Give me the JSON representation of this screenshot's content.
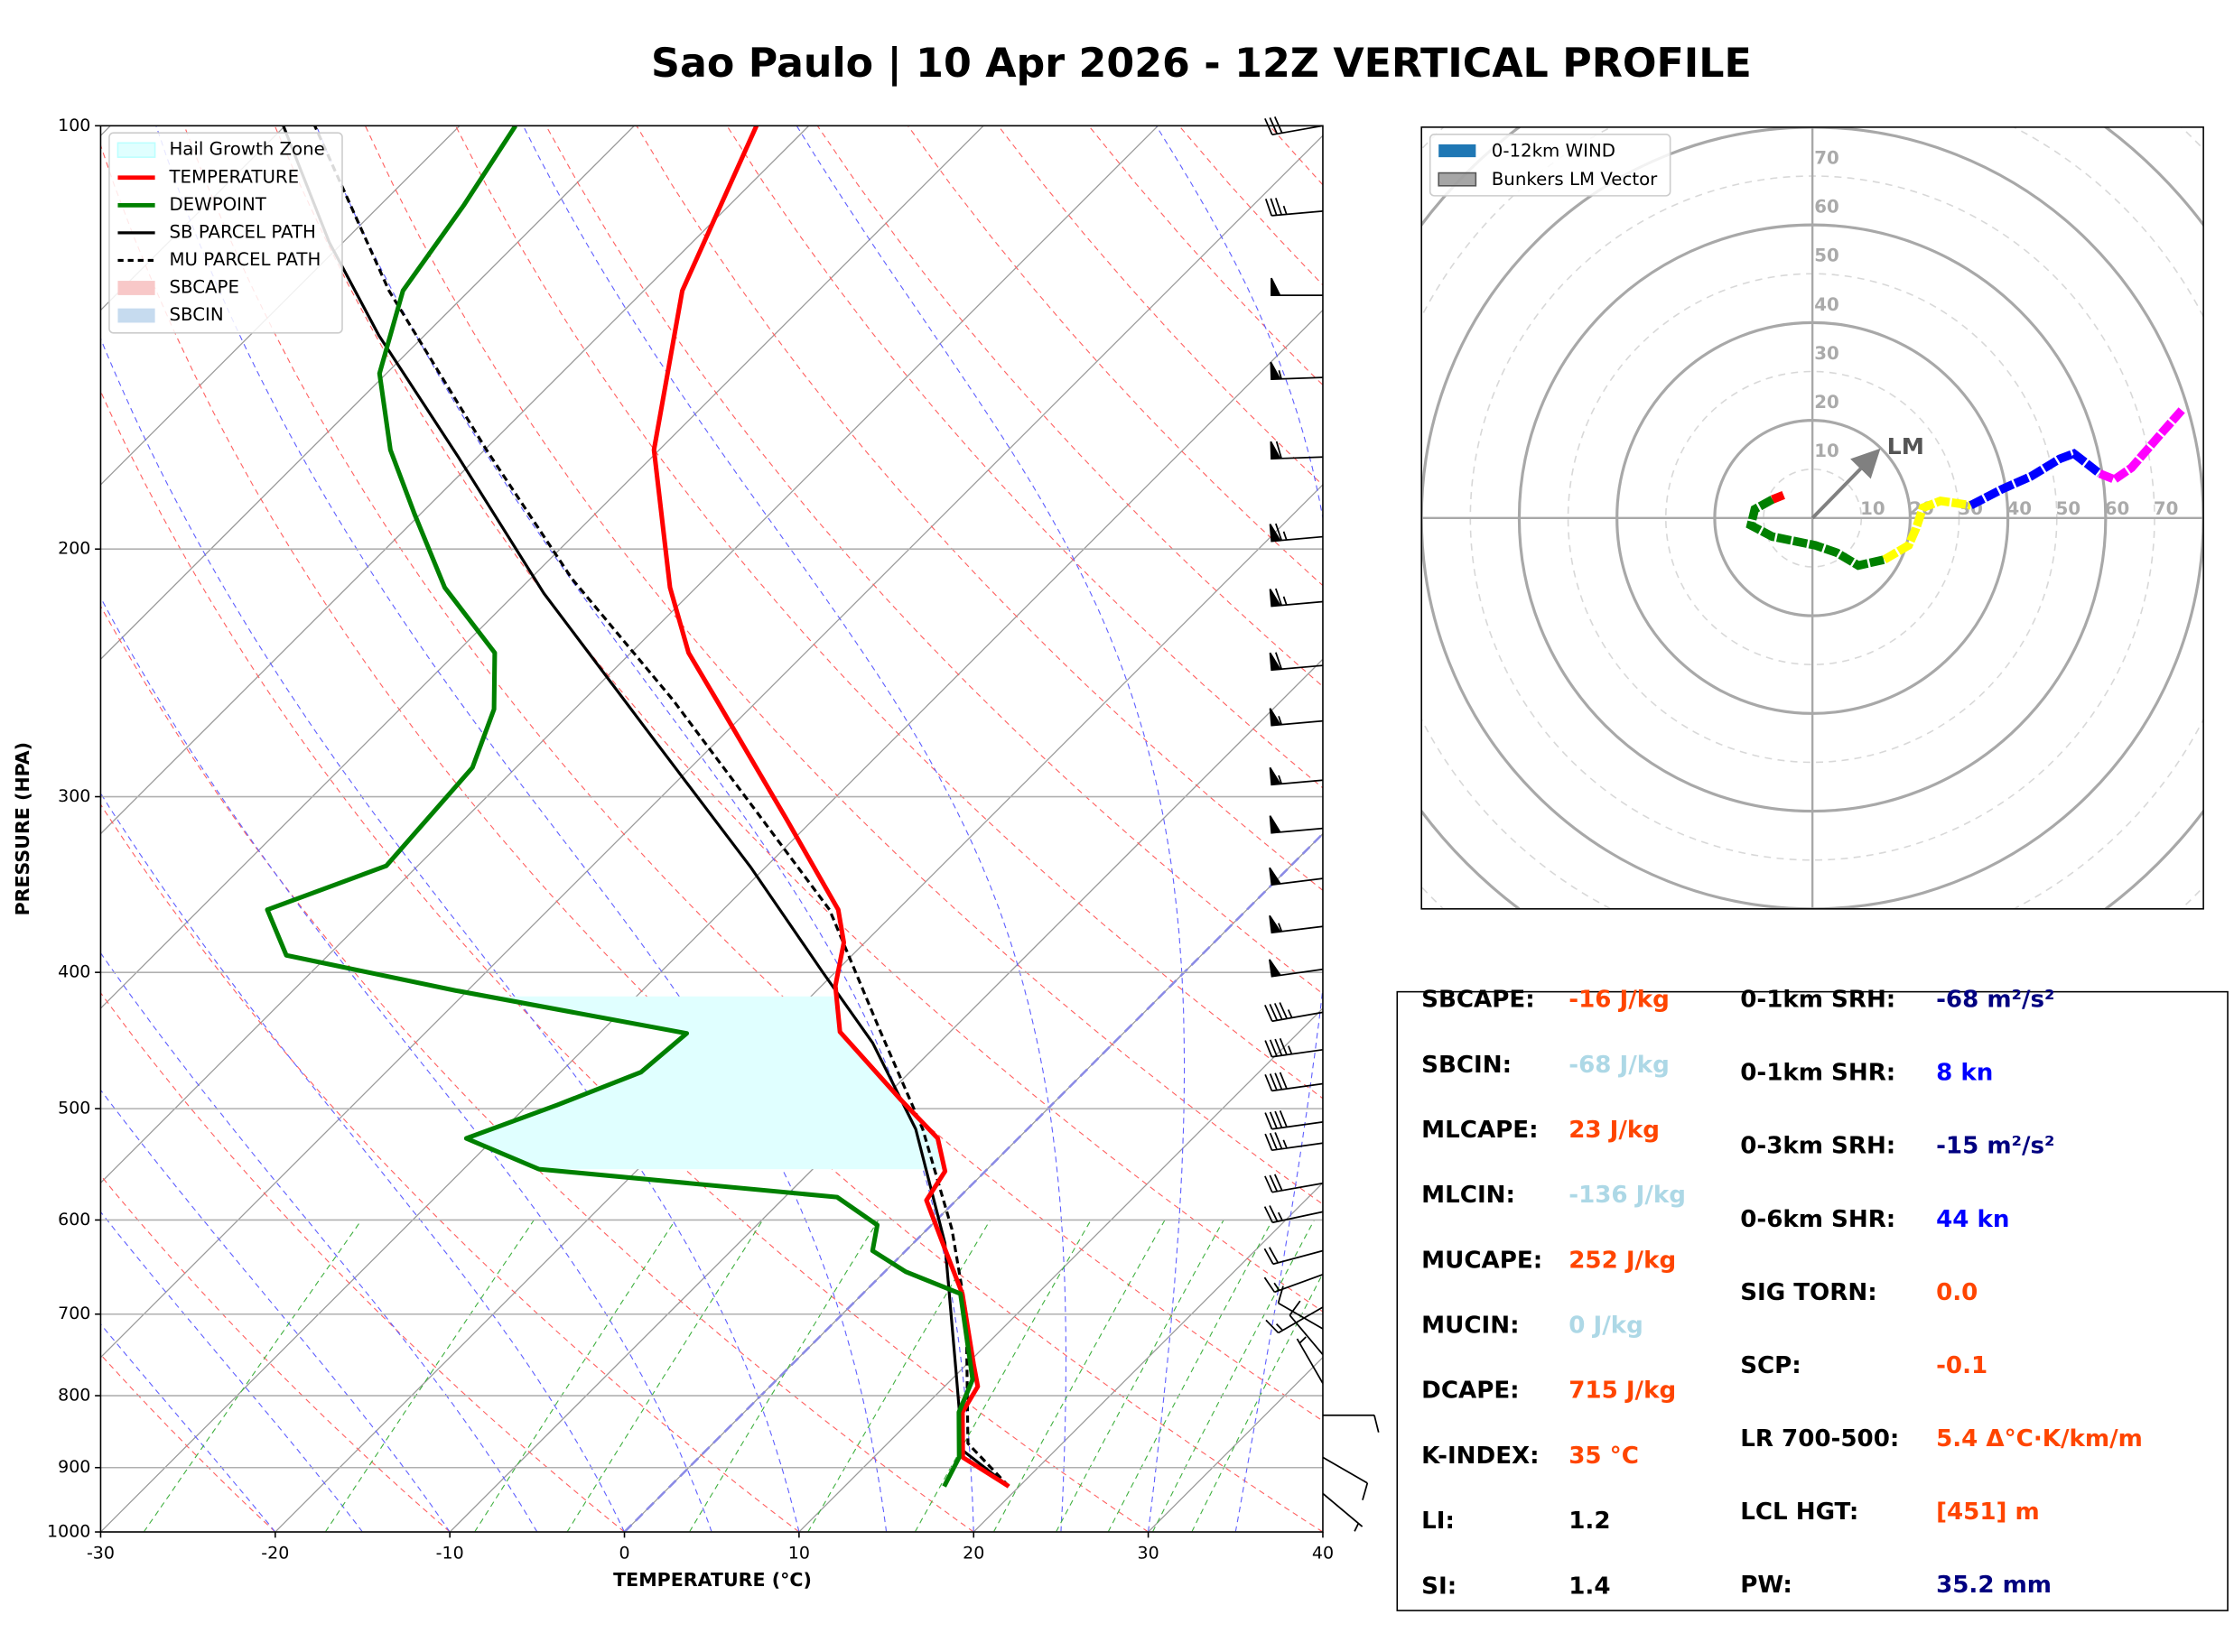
{
  "title": "Sao Paulo | 10 Apr 2026 - 12Z VERTICAL PROFILE",
  "chart_data": [
    {
      "type": "skewt",
      "x_label": "TEMPERATURE (°C)",
      "y_label": "PRESSURE (HPA)",
      "xlim": [
        -30,
        40
      ],
      "ylim": [
        1000,
        100
      ],
      "log_y": true,
      "xticks": [
        -30,
        -20,
        -10,
        0,
        10,
        20,
        30,
        40
      ],
      "yticks": [
        1000,
        900,
        800,
        700,
        600,
        500,
        400,
        300,
        200,
        100
      ],
      "grid": true,
      "legend": "upper left",
      "hail_growth_zone": {
        "name": "Hail Growth Zone",
        "color": "#e0ffff",
        "pressure": [
          552,
          416
        ]
      },
      "series": [
        {
          "name": "TEMPERATURE",
          "color": "#ff0000",
          "linestyle": "solid",
          "pressure": [
            928,
            885,
            822,
            788,
            760,
            677,
            626,
            581,
            554,
            525,
            493,
            441,
            409,
            381,
            361,
            311,
            256,
            237,
            213,
            170,
            131,
            100
          ],
          "values": [
            19.4,
            15.1,
            12.5,
            11.9,
            10.4,
            5.7,
            1.9,
            -1.7,
            -2.3,
            -4.6,
            -8.9,
            -16.3,
            -19.2,
            -21.2,
            -23.4,
            -31.6,
            -42.4,
            -46.7,
            -51.5,
            -60.3,
            -67.8,
            -73
          ]
        },
        {
          "name": "DEWPOINT",
          "color": "#008000",
          "linestyle": "solid",
          "pressure": [
            928,
            885,
            822,
            779,
            677,
            653,
            631,
            605,
            578,
            552,
            525,
            497,
            471,
            442,
            412,
            389,
            361,
            336,
            286,
            260,
            237,
            213,
            189,
            170,
            150,
            131,
            114,
            100
          ],
          "values": [
            15.7,
            14.9,
            12.3,
            11.2,
            5.6,
            1.2,
            -1.9,
            -3.1,
            -7.0,
            -25.7,
            -31.6,
            -28.3,
            -25.4,
            -25.0,
            -40.7,
            -52.4,
            -56.1,
            -51.8,
            -52.5,
            -54.6,
            -57.8,
            -64.4,
            -70.3,
            -75.4,
            -80.4,
            -83.8,
            -85.2,
            -86.8
          ]
        },
        {
          "name": "SB PARCEL PATH",
          "color": "#000000",
          "linestyle": "solid",
          "pressure": [
            928,
            875,
            769,
            623,
            517,
            449,
            400,
            337,
            275,
            215,
            172,
            141,
            121,
            100
          ],
          "values": [
            19.4,
            14.7,
            9.8,
            1.8,
            -6.4,
            -13.8,
            -20.7,
            -30.8,
            -43.3,
            -58.4,
            -71.1,
            -82.6,
            -90.8,
            -100.1
          ]
        },
        {
          "name": "MU PARCEL PATH",
          "color": "#000000",
          "linestyle": "dashed",
          "pressure": [
            928,
            865,
            700,
            609,
            517,
            439,
            361,
            309,
            256,
            210,
            170,
            131,
            100
          ],
          "values": [
            19.4,
            14.6,
            7.1,
            1.4,
            -6.0,
            -14.2,
            -23.9,
            -33.4,
            -44.9,
            -57.6,
            -69.9,
            -84.6,
            -98.3
          ]
        }
      ],
      "shading": [
        {
          "name": "SBCAPE",
          "color": "#f8c8c8"
        },
        {
          "name": "SBCIN",
          "color": "#c6dbef"
        }
      ],
      "winds": {
        "pressure": [
          100,
          115,
          132,
          151,
          172,
          196,
          218,
          242,
          265,
          292,
          316,
          343,
          371,
          398,
          427,
          454,
          480,
          511,
          529,
          565,
          592,
          631,
          656,
          692,
          717,
          748,
          784,
          826,
          885,
          939
        ],
        "speed": [
          30,
          35,
          50,
          55,
          60,
          65,
          65,
          60,
          55,
          55,
          50,
          50,
          55,
          50,
          45,
          45,
          40,
          40,
          35,
          30,
          25,
          20,
          15,
          15,
          10,
          10,
          5,
          10,
          10,
          5
        ],
        "direction": [
          260,
          265,
          270,
          268,
          268,
          265,
          265,
          265,
          265,
          265,
          265,
          263,
          263,
          262,
          260,
          262,
          262,
          262,
          262,
          260,
          258,
          255,
          250,
          240,
          300,
          320,
          330,
          90,
          120,
          130
        ]
      }
    },
    {
      "type": "hodograph",
      "xlim": [
        -80,
        80
      ],
      "ylim": [
        -80,
        80
      ],
      "rings": [
        10,
        20,
        30,
        40,
        50,
        60,
        70
      ],
      "legend": "upper left",
      "wind_label": "0-12km WIND",
      "wind_color": "#1f77b4",
      "segments": [
        {
          "color": "#ff0000",
          "u": [
            -5.9,
            -8.2
          ],
          "v": [
            4.7,
            3.8
          ]
        },
        {
          "color": "#008000",
          "u": [
            -8.2,
            -11.8,
            -12.6,
            -8.2,
            0.6,
            5,
            9.4,
            14.7
          ],
          "v": [
            3.8,
            1.8,
            -1.5,
            -3.8,
            -5.6,
            -7.1,
            -9.7,
            -8.5
          ]
        },
        {
          "color": "#ffff00",
          "u": [
            14.7,
            19.7,
            21.2,
            22.6,
            26.2,
            32.4
          ],
          "v": [
            -8.5,
            -5.6,
            -2.1,
            2.1,
            3.5,
            2.6
          ]
        },
        {
          "color": "#0000ff",
          "u": [
            32.4,
            38.8,
            44.7,
            50.6,
            53.5,
            58.8
          ],
          "v": [
            2.6,
            5.9,
            8.5,
            12.1,
            13.2,
            9.1
          ]
        },
        {
          "color": "#ff00ff",
          "u": [
            58.8,
            61.8,
            65.3,
            71.2,
            75.6
          ],
          "v": [
            9.1,
            7.9,
            10.3,
            17.1,
            22.1
          ]
        }
      ],
      "lm_vector": {
        "name": "Bunkers LM Vector",
        "label": "LM",
        "color": "#808080",
        "u": 12.9,
        "v": 13.2
      }
    }
  ],
  "parameters": {
    "left": [
      {
        "label": "SBCAPE:",
        "value": "-16 J/kg",
        "color": "#ff4500"
      },
      {
        "label": "SBCIN:",
        "value": "-68 J/kg",
        "color": "#add8e6"
      },
      {
        "label": "MLCAPE:",
        "value": "23 J/kg",
        "color": "#ff4500"
      },
      {
        "label": "MLCIN:",
        "value": "-136 J/kg",
        "color": "#add8e6"
      },
      {
        "label": "MUCAPE:",
        "value": "252 J/kg",
        "color": "#ff4500"
      },
      {
        "label": "MUCIN:",
        "value": "0 J/kg",
        "color": "#add8e6"
      },
      {
        "label": "DCAPE:",
        "value": "715 J/kg",
        "color": "#ff4500"
      },
      {
        "label": "K-INDEX:",
        "value": "35 °C",
        "color": "#ff4500"
      },
      {
        "label": "LI:",
        "value": "1.2",
        "color": "#000000"
      },
      {
        "label": "SI:",
        "value": "1.4",
        "color": "#000000"
      }
    ],
    "right": [
      {
        "label": "0-1km SRH:",
        "value": "-68 m²/s²",
        "color": "#000080"
      },
      {
        "label": "0-1km SHR:",
        "value": "8 kn",
        "color": "#0000ff"
      },
      {
        "label": "0-3km SRH:",
        "value": "-15 m²/s²",
        "color": "#000080"
      },
      {
        "label": "0-6km SHR:",
        "value": "44 kn",
        "color": "#0000ff"
      },
      {
        "label": "SIG TORN:",
        "value": "0.0",
        "color": "#ff4500"
      },
      {
        "label": "SCP:",
        "value": "-0.1",
        "color": "#ff4500"
      },
      {
        "label": "LR 700-500:",
        "value": "5.4 Δ°C·K/km/m",
        "color": "#ff4500"
      },
      {
        "label": "LCL HGT:",
        "value": "[451] m",
        "color": "#ff4500"
      },
      {
        "label": "PW:",
        "value": "35.2 mm",
        "color": "#000080"
      }
    ]
  }
}
